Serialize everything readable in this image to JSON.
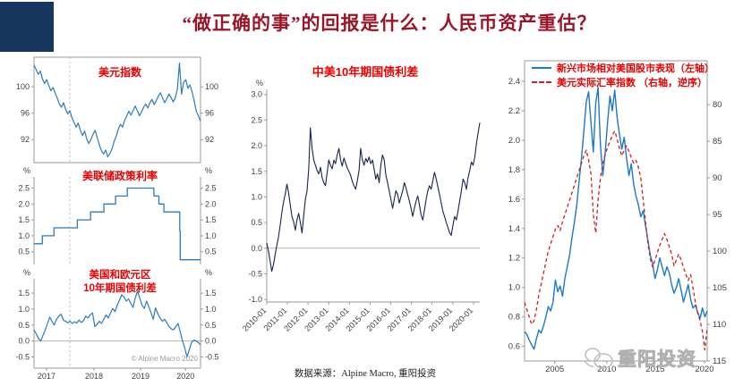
{
  "slide": {
    "title": "“做正确的事”的回报是什么：人民币资产重估？",
    "source_note": "数据来源：Alpine Macro, 重阳投资",
    "watermark_text": "重阳投资",
    "accent_color": "#17375e",
    "title_color": "#9b1528",
    "chart_title_color": "#e60000"
  },
  "chart_data": [
    {
      "id": "dxy",
      "type": "line",
      "title": "美元指数",
      "ylim": [
        88.5,
        104.5
      ],
      "axes": "box",
      "mirror": true,
      "vline": 0.215,
      "pad": [
        6,
        36,
        4,
        30
      ],
      "fs": 9,
      "yticks": [
        {
          "v": 92,
          "label": "92"
        },
        {
          "v": 96,
          "label": "96"
        },
        {
          "v": 100,
          "label": "100"
        }
      ],
      "xrange_note": "2017-2020",
      "series": [
        {
          "name_id": "usd-index",
          "color": "#2b7cba",
          "width": 1.2,
          "values": [
            103.3,
            102.6,
            101.9,
            102.4,
            101.2,
            100.5,
            101.1,
            100.2,
            99.4,
            99.9,
            99.1,
            98.3,
            97.4,
            96.9,
            97.6,
            96.6,
            95.9,
            96.4,
            95.3,
            94.6,
            93.9,
            94.5,
            93.4,
            92.6,
            93.3,
            92.1,
            91.4,
            92.0,
            92.8,
            93.4,
            92.3,
            91.2,
            90.3,
            89.8,
            90.4,
            89.4,
            89.9,
            90.6,
            91.7,
            92.5,
            93.6,
            94.3,
            93.9,
            94.9,
            95.6,
            96.3,
            95.7,
            96.4,
            97.1,
            96.4,
            95.6,
            96.2,
            96.9,
            97.4,
            96.8,
            97.6,
            98.1,
            97.3,
            97.9,
            98.6,
            99.1,
            98.3,
            97.6,
            98.2,
            98.9,
            98.4,
            97.7,
            98.3,
            99.6,
            103.6,
            98.9,
            100.7,
            101.1,
            99.8,
            100.3,
            99.2,
            97.9,
            96.3,
            95.6,
            94.8
          ]
        }
      ]
    },
    {
      "id": "fed",
      "type": "line",
      "title": "美联储政策利率",
      "ylim": [
        0.1,
        2.85
      ],
      "axes": "lr",
      "mirror": true,
      "vline": 0.215,
      "unit_left": "%",
      "unit_right": "%",
      "pad": [
        12,
        36,
        2,
        30
      ],
      "fs": 9,
      "yticks": [
        {
          "v": 0.5,
          "label": "0.5"
        },
        {
          "v": 1.0,
          "label": "1.0"
        },
        {
          "v": 1.5,
          "label": "1.5"
        },
        {
          "v": 2.0,
          "label": "2.0"
        },
        {
          "v": 2.5,
          "label": "2.5"
        }
      ],
      "series": [
        {
          "name_id": "fed-funds-rate",
          "color": "#2b7cba",
          "width": 1.3,
          "xy": [
            [
              0,
              0.75
            ],
            [
              0.05,
              0.75
            ],
            [
              0.05,
              1.0
            ],
            [
              0.12,
              1.0
            ],
            [
              0.12,
              1.25
            ],
            [
              0.26,
              1.25
            ],
            [
              0.26,
              1.5
            ],
            [
              0.34,
              1.5
            ],
            [
              0.34,
              1.75
            ],
            [
              0.42,
              1.75
            ],
            [
              0.42,
              2.0
            ],
            [
              0.49,
              2.0
            ],
            [
              0.49,
              2.25
            ],
            [
              0.56,
              2.25
            ],
            [
              0.56,
              2.5
            ],
            [
              0.72,
              2.5
            ],
            [
              0.72,
              2.25
            ],
            [
              0.75,
              2.25
            ],
            [
              0.75,
              2.0
            ],
            [
              0.78,
              2.0
            ],
            [
              0.78,
              1.75
            ],
            [
              0.875,
              1.75
            ],
            [
              0.875,
              1.15
            ],
            [
              0.878,
              1.15
            ],
            [
              0.878,
              0.25
            ],
            [
              1.0,
              0.25
            ]
          ]
        }
      ]
    },
    {
      "id": "useu",
      "type": "line",
      "title": "美国和欧元区\n10年期国债利差",
      "ylim": [
        -0.85,
        1.95
      ],
      "axes": "lrb",
      "mirror": true,
      "vline": 0.215,
      "zero": 0,
      "unit_left": "%",
      "unit_right": "%",
      "pad": [
        14,
        36,
        20,
        30
      ],
      "fs": 9,
      "note": "© Alpine Macro 2020",
      "yticks": [
        {
          "v": -0.5,
          "label": "-0.5"
        },
        {
          "v": 0.0,
          "label": "0.0"
        },
        {
          "v": 0.5,
          "label": "0.5"
        },
        {
          "v": 1.0,
          "label": "1.0"
        },
        {
          "v": 1.5,
          "label": "1.5"
        }
      ],
      "xticks": [
        {
          "f": 0.075,
          "label": "2017"
        },
        {
          "f": 0.36,
          "label": "2018"
        },
        {
          "f": 0.64,
          "label": "2019"
        },
        {
          "f": 0.91,
          "label": "2020"
        }
      ],
      "series": [
        {
          "name_id": "us-eu-10y-spread",
          "color": "#2b7cba",
          "width": 1.2,
          "values": [
            0.35,
            0.22,
            0.08,
            0.0,
            0.18,
            0.35,
            0.55,
            0.75,
            0.62,
            0.5,
            0.68,
            0.78,
            0.84,
            0.66,
            0.62,
            0.57,
            0.62,
            0.55,
            0.6,
            0.56,
            0.66,
            0.58,
            0.64,
            0.78,
            0.72,
            0.82,
            0.88,
            0.45,
            0.52,
            0.62,
            0.55,
            0.68,
            0.82,
            0.72,
            0.88,
            1.02,
            0.92,
            1.12,
            1.28,
            1.45,
            1.38,
            1.25,
            1.32,
            1.18,
            1.05,
            1.35,
            1.56,
            1.35,
            1.12,
            1.02,
            1.25,
            1.08,
            0.88,
            0.68,
            1.04,
            0.86,
            0.72,
            0.62,
            0.68,
            0.58,
            0.45,
            0.38,
            0.35,
            0.45,
            0.55,
            0.28,
            0.0,
            -0.22,
            -0.5,
            -0.28,
            -0.05,
            0.03,
            0.0,
            -0.05,
            -0.12
          ]
        }
      ]
    },
    {
      "id": "cnus",
      "type": "line",
      "title": "中美10年期国债利差",
      "ylim": [
        -1.05,
        3.1
      ],
      "axes": "lb",
      "zero": 0,
      "unit_left": "%",
      "pad": [
        36,
        12,
        82,
        30
      ],
      "fs": 9,
      "rotate_x": true,
      "yticks": [
        {
          "v": -1.0,
          "label": "-1.0"
        },
        {
          "v": -0.5,
          "label": "-0.5"
        },
        {
          "v": 0.0,
          "label": "0.0"
        },
        {
          "v": 0.5,
          "label": "0.5"
        },
        {
          "v": 1.0,
          "label": "1.0"
        },
        {
          "v": 1.5,
          "label": "1.5"
        },
        {
          "v": 2.0,
          "label": "2.0"
        },
        {
          "v": 2.5,
          "label": "2.5"
        },
        {
          "v": 3.0,
          "label": "3.0"
        }
      ],
      "xticks": [
        {
          "f": 0.0,
          "label": "2010-01"
        },
        {
          "f": 0.097,
          "label": "2011-01"
        },
        {
          "f": 0.194,
          "label": "2012-01"
        },
        {
          "f": 0.291,
          "label": "2013-01"
        },
        {
          "f": 0.388,
          "label": "2014-01"
        },
        {
          "f": 0.485,
          "label": "2015-01"
        },
        {
          "f": 0.582,
          "label": "2016-01"
        },
        {
          "f": 0.679,
          "label": "2017-01"
        },
        {
          "f": 0.776,
          "label": "2018-01"
        },
        {
          "f": 0.873,
          "label": "2019-01"
        },
        {
          "f": 0.97,
          "label": "2020-01"
        }
      ],
      "series": [
        {
          "name_id": "cn-us-10y-spread",
          "color": "#15254d",
          "width": 1.1,
          "values": [
            0.1,
            -0.05,
            -0.25,
            -0.45,
            -0.32,
            -0.12,
            0.05,
            0.22,
            0.45,
            0.7,
            0.9,
            1.05,
            1.25,
            1.08,
            0.85,
            0.62,
            0.52,
            0.35,
            0.55,
            0.68,
            0.5,
            0.3,
            0.62,
            0.95,
            1.12,
            1.55,
            2.35,
            1.95,
            1.72,
            1.62,
            1.52,
            1.45,
            1.58,
            1.38,
            1.28,
            1.22,
            1.48,
            1.72,
            1.62,
            1.55,
            1.72,
            1.65,
            1.82,
            1.95,
            1.72,
            1.6,
            1.76,
            1.66,
            1.56,
            1.5,
            1.42,
            1.3,
            1.22,
            1.15,
            1.32,
            1.52,
            1.95,
            1.72,
            1.62,
            1.75,
            1.68,
            1.78,
            1.65,
            1.72,
            1.55,
            1.35,
            1.45,
            1.28,
            1.62,
            1.82,
            1.72,
            1.42,
            1.28,
            1.12,
            0.95,
            0.78,
            0.95,
            1.12,
            1.05,
            0.88,
            1.0,
            1.12,
            1.28,
            1.18,
            1.05,
            0.92,
            0.78,
            0.62,
            0.78,
            0.92,
            1.02,
            0.85,
            0.65,
            0.55,
            0.75,
            0.95,
            1.12,
            1.22,
            1.15,
            1.32,
            1.48,
            1.35,
            1.2,
            1.05,
            0.88,
            0.72,
            0.62,
            0.5,
            0.4,
            0.3,
            0.25,
            0.45,
            0.62,
            0.55,
            0.72,
            0.92,
            1.12,
            1.35,
            1.28,
            1.15,
            1.38,
            1.52,
            1.68,
            1.62,
            1.78,
            2.05,
            2.25,
            2.45
          ]
        }
      ]
    },
    {
      "id": "em",
      "type": "line",
      "title": "",
      "ylim": [
        0.5,
        2.54
      ],
      "rlim": [
        74,
        115
      ],
      "axes": "box",
      "pad": [
        8,
        38,
        22,
        30
      ],
      "fs": 9.5,
      "legend": [
        {
          "label": "新兴市场相对美国股市表现（左轴）",
          "style": "solid"
        },
        {
          "label": "美元实际汇率指数 （右轴，逆序）",
          "style": "dashed"
        }
      ],
      "yticks": [
        {
          "v": 0.6,
          "label": "0.6"
        },
        {
          "v": 0.8,
          "label": "0.8"
        },
        {
          "v": 1.0,
          "label": "1.0"
        },
        {
          "v": 1.2,
          "label": "1.2"
        },
        {
          "v": 1.4,
          "label": "1.4"
        },
        {
          "v": 1.6,
          "label": "1.6"
        },
        {
          "v": 1.8,
          "label": "1.8"
        },
        {
          "v": 2.0,
          "label": "2.0"
        },
        {
          "v": 2.2,
          "label": "2.2"
        },
        {
          "v": 2.4,
          "label": "2.4"
        }
      ],
      "rticks": [
        {
          "v": 80,
          "label": "80"
        },
        {
          "v": 85,
          "label": "85"
        },
        {
          "v": 90,
          "label": "90"
        },
        {
          "v": 95,
          "label": "95"
        },
        {
          "v": 100,
          "label": "100"
        },
        {
          "v": 105,
          "label": "105"
        },
        {
          "v": 110,
          "label": "110"
        },
        {
          "v": 115,
          "label": "115"
        }
      ],
      "xticks": [
        {
          "f": 0.165,
          "label": "2005"
        },
        {
          "f": 0.45,
          "label": "2010"
        },
        {
          "f": 0.715,
          "label": "2015"
        },
        {
          "f": 0.985,
          "label": "2020"
        }
      ],
      "series": [
        {
          "name_id": "em-vs-us-equity",
          "axis": "left",
          "color": "#1c78c8",
          "width": 1.4,
          "values": [
            0.7,
            0.68,
            0.64,
            0.61,
            0.58,
            0.65,
            0.71,
            0.69,
            0.74,
            0.8,
            0.87,
            0.84,
            0.9,
            1.05,
            0.97,
            1.01,
            0.94,
            1.06,
            1.14,
            1.22,
            1.34,
            1.44,
            1.56,
            1.72,
            1.88,
            2.06,
            2.26,
            2.33,
            2.12,
            1.92,
            2.25,
            2.36,
            1.96,
            1.76,
            1.92,
            2.12,
            2.3,
            2.2,
            2.34,
            2.16,
            2.04,
            1.94,
            2.02,
            1.88,
            1.76,
            1.84,
            1.7,
            1.62,
            1.56,
            1.48,
            1.52,
            1.42,
            1.32,
            1.22,
            1.16,
            1.06,
            1.12,
            1.2,
            1.14,
            1.08,
            1.14,
            1.1,
            1.02,
            0.96,
            1.0,
            1.06,
            0.98,
            0.9,
            0.96,
            1.02,
            0.92,
            0.86,
            0.88,
            0.83,
            0.79,
            0.86,
            0.8,
            0.84
          ]
        },
        {
          "name_id": "usd-real-exchange-rate",
          "axis": "right",
          "color": "#cc2020",
          "width": 1.3,
          "dash": "4 3",
          "values": [
            107,
            108,
            109,
            110,
            109.5,
            108,
            106,
            104.5,
            103,
            101.5,
            100,
            99,
            98,
            97,
            96.5,
            97.2,
            96,
            95,
            94,
            93,
            92,
            91,
            90,
            89,
            88,
            87,
            86.2,
            87.5,
            89.5,
            95,
            97.5,
            93,
            90,
            88,
            86.8,
            85.8,
            85,
            84.2,
            83.6,
            84.6,
            86,
            87,
            86.2,
            85.6,
            86.4,
            87.2,
            88,
            87.6,
            88.6,
            90,
            93,
            96,
            99,
            101,
            102.2,
            101.2,
            100.2,
            99.2,
            98.4,
            97.6,
            98.4,
            99.4,
            100.4,
            102,
            101.2,
            100.4,
            101.2,
            102.2,
            103.2,
            104,
            103.2,
            105,
            107,
            108.5,
            109.5,
            111,
            113.5,
            110.5
          ]
        }
      ]
    }
  ]
}
